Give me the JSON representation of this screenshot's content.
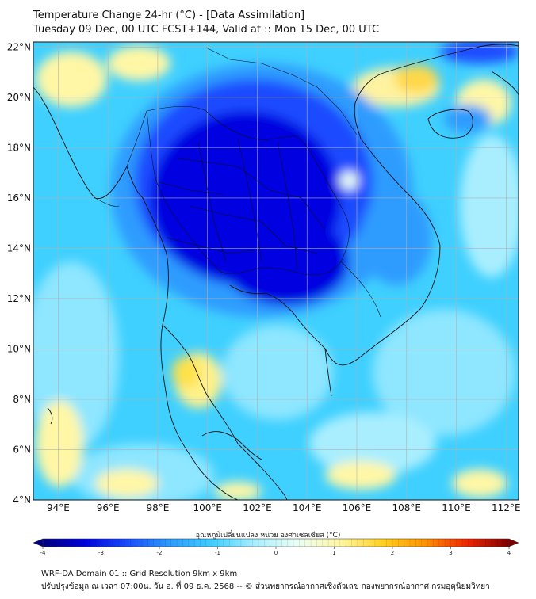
{
  "title_line1": "Temperature Change 24-hr (°C) - [Data Assimilation]",
  "title_line2": "Tuesday 09 Dec, 00 UTC FCST+144, Valid at :: Mon 15 Dec, 00 UTC",
  "lat_labels": [
    "22°N",
    "20°N",
    "18°N",
    "16°N",
    "14°N",
    "12°N",
    "10°N",
    "8°N",
    "6°N",
    "4°N"
  ],
  "lon_labels": [
    "94°E",
    "96°E",
    "98°E",
    "100°E",
    "102°E",
    "104°E",
    "106°E",
    "108°E",
    "110°E",
    "112°E"
  ],
  "colorbar": {
    "label": "อุณหภูมิเปลี่ยนแปลง หน่วย องศาเซลเซียส (°C)",
    "ticks": [
      "-4",
      "-3",
      "-2",
      "-1",
      "0",
      "1",
      "2",
      "3",
      "4"
    ],
    "range": [
      -4,
      4
    ],
    "colors": [
      "#00007f",
      "#0000e0",
      "#1a4cff",
      "#2e9bff",
      "#3fd0ff",
      "#a9eeff",
      "#eafff5",
      "#fff7a6",
      "#ffd21f",
      "#ff9400",
      "#f22500",
      "#7f0000"
    ]
  },
  "footer_line1": "WRF-DA Domain 01 :: Grid Resolution 9km x 9km",
  "footer_line2": "ปรับปรุงข้อมูล ณ เวลา 07:00น. วัน อ. ที่ 09 ธ.ค. 2568 -- © ส่วนพยากรณ์อากาศเชิงตัวเลข กองพยากรณ์อากาศ กรมอุตุนิยมวิทยา"
}
